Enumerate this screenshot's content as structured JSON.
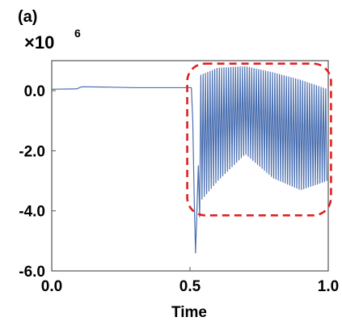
{
  "chart_data": {
    "type": "line",
    "panel_label": "(a)",
    "scale_prefix": "×10",
    "scale_exponent": "6",
    "xlabel": "Time",
    "ylabel": "",
    "xlim": [
      0.0,
      1.0
    ],
    "ylim": [
      -6.0,
      1.0
    ],
    "x_ticks": [
      0.0,
      0.5,
      1.0
    ],
    "x_tick_labels": [
      "0.0",
      "0.5",
      "1.0"
    ],
    "y_ticks": [
      0.0,
      -2.0,
      -4.0,
      -6.0
    ],
    "y_tick_labels": [
      "0.0",
      "-2.0",
      "-4.0",
      "-6.0"
    ],
    "grid": false,
    "line_color": "#4a6fb0",
    "highlight_color": "#e02020",
    "series": [
      {
        "segments": [
          {
            "x": [
              0.0,
              0.09,
              0.1,
              0.11,
              0.2,
              0.3,
              0.4,
              0.5,
              0.505
            ],
            "y": [
              0.05,
              0.06,
              0.1,
              0.13,
              0.12,
              0.1,
              0.1,
              0.1,
              0.1
            ]
          },
          {
            "x": [
              0.505,
              0.51,
              0.515,
              0.52,
              0.525,
              0.53,
              0.535
            ],
            "y": [
              0.1,
              -1.0,
              -3.5,
              -5.4,
              -4.0,
              -2.5,
              -4.2
            ]
          }
        ],
        "oscillation": {
          "x_start": 0.535,
          "x_end": 0.995,
          "cycles": 55,
          "upper": {
            "x": [
              0.535,
              0.6,
              0.7,
              0.8,
              0.9,
              0.995
            ],
            "y": [
              0.5,
              0.75,
              0.8,
              0.6,
              0.35,
              0.05
            ]
          },
          "lower": {
            "x": [
              0.535,
              0.6,
              0.7,
              0.8,
              0.9,
              0.995
            ],
            "y": [
              -3.7,
              -3.0,
              -2.1,
              -2.9,
              -3.3,
              -3.0
            ]
          }
        }
      }
    ],
    "annotation": {
      "shape": "rounded-dashed-rect",
      "x": [
        0.49,
        1.01
      ],
      "y": [
        -4.15,
        0.9
      ]
    }
  }
}
